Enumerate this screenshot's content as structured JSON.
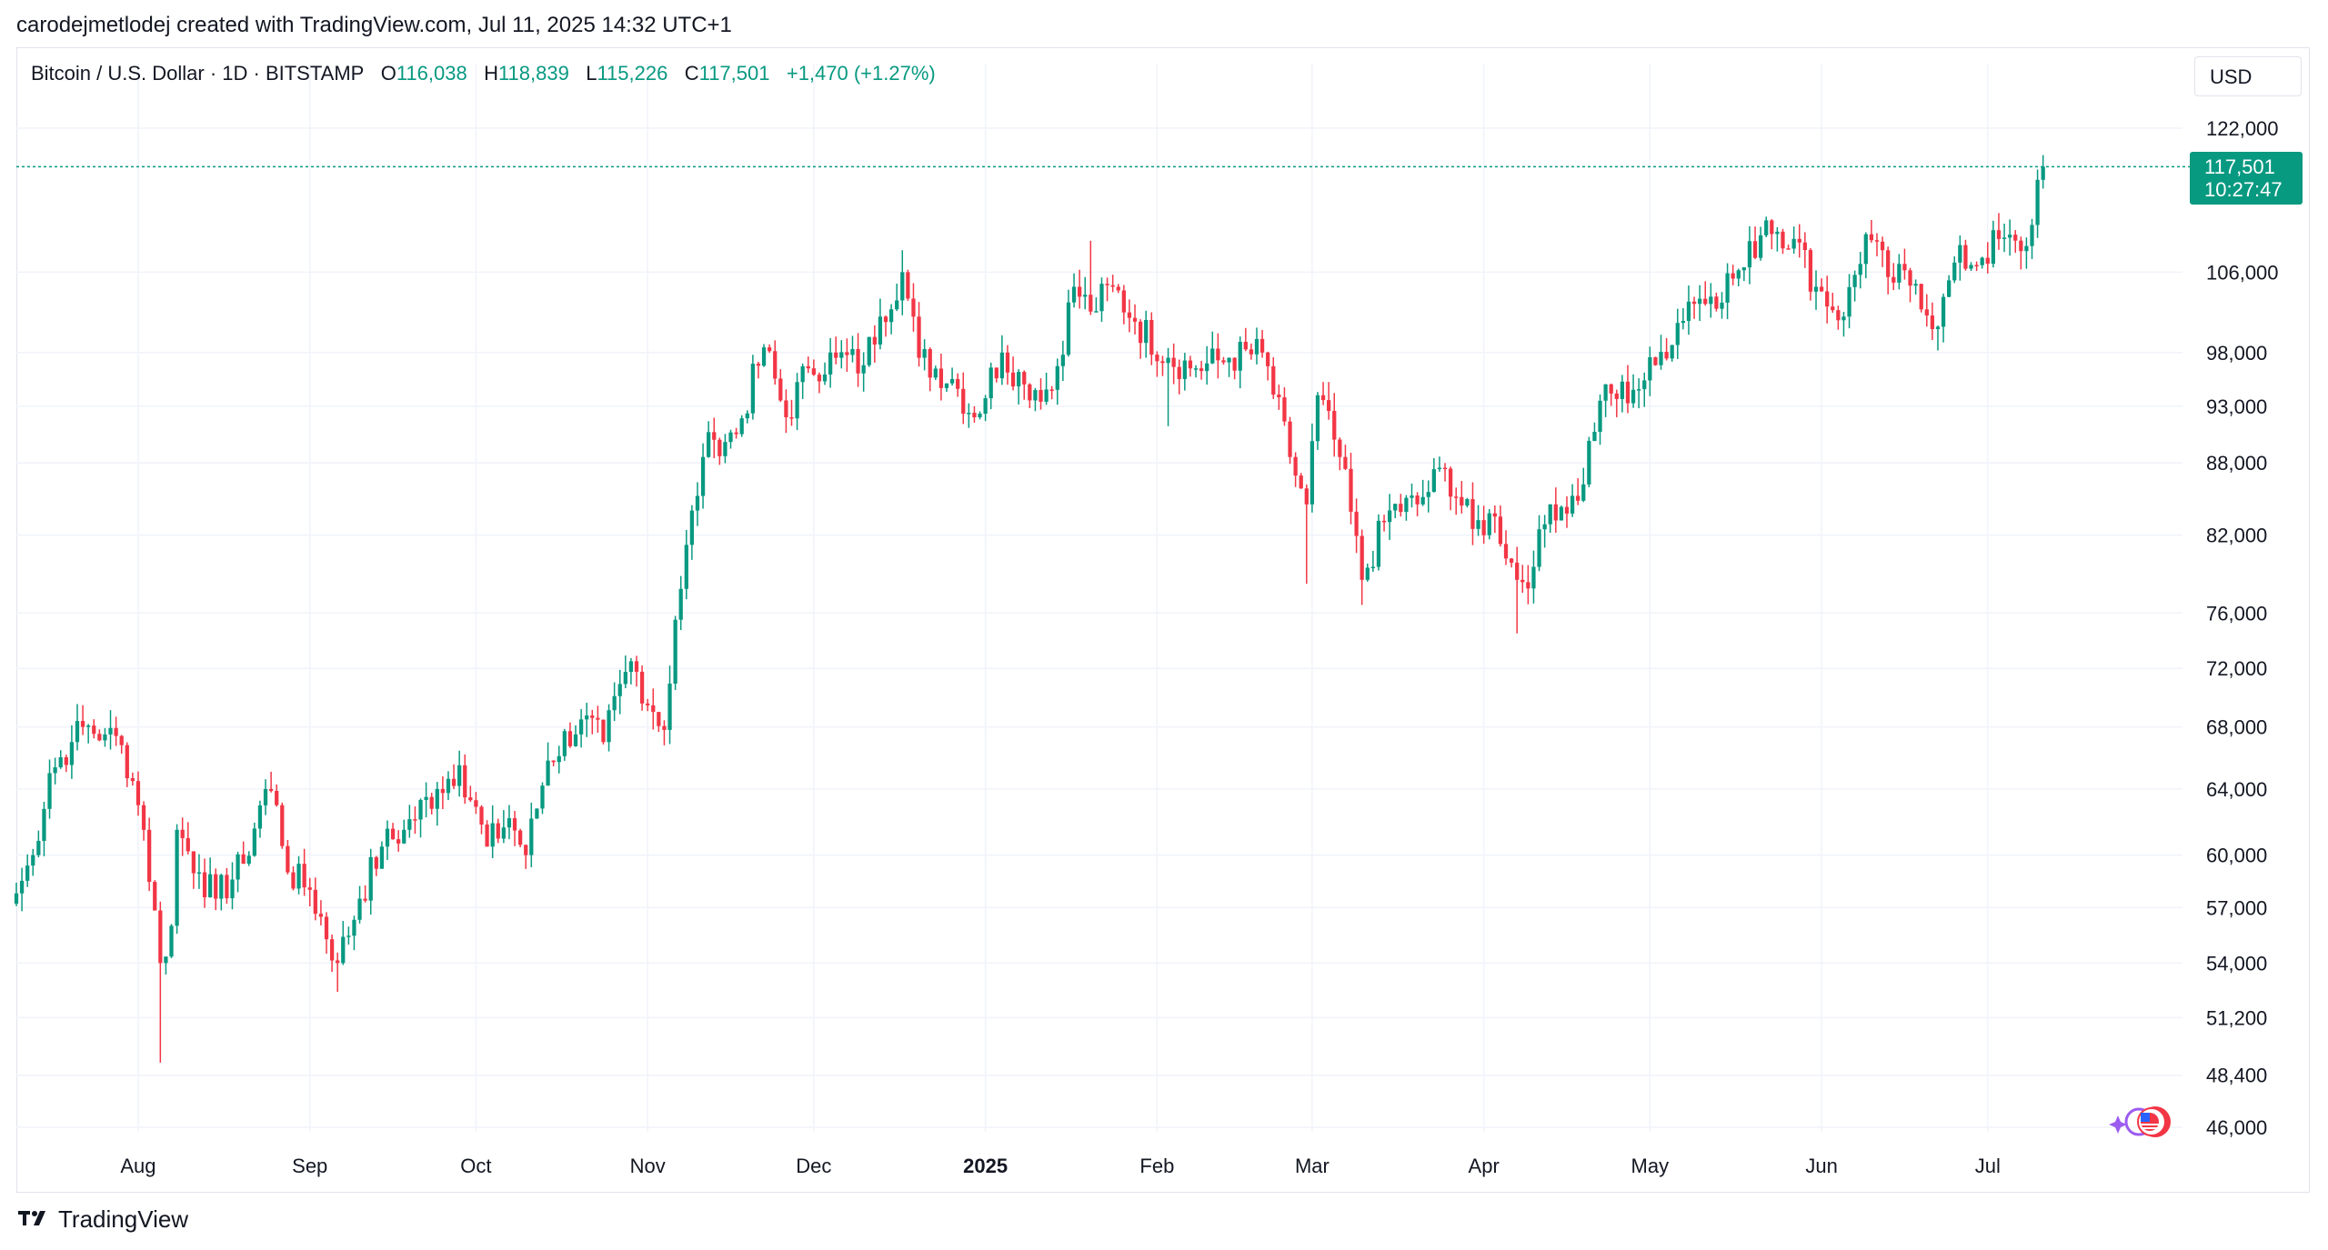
{
  "header": {
    "caption": "carodejmetlodej created with TradingView.com, Jul 11, 2025 14:32 UTC+1"
  },
  "symbol": {
    "title": "Bitcoin / U.S. Dollar · 1D · BITSTAMP",
    "open_label": "O",
    "open_value": "116,038",
    "high_label": "H",
    "high_value": "118,839",
    "low_label": "L",
    "low_value": "115,226",
    "close_label": "C",
    "close_value": "117,501",
    "change": "+1,470 (+1.27%)"
  },
  "currency": "USD",
  "last_price": {
    "price": "117,501",
    "countdown": "10:27:47"
  },
  "brand": {
    "name": "TradingView"
  },
  "icons": {
    "logo": "tradingview-logo-icon",
    "flag": "us-flag-events-icon"
  },
  "colors": {
    "up": "#089981",
    "down": "#f23645",
    "grid": "#f0f3fa",
    "axis_text": "#131722"
  },
  "chart_data": {
    "type": "candlestick",
    "scale": "log",
    "ylim": [
      45000,
      130000
    ],
    "y_ticks": [
      {
        "value": 122000,
        "label": "122,000"
      },
      {
        "value": 106000,
        "label": "106,000"
      },
      {
        "value": 98000,
        "label": "98,000"
      },
      {
        "value": 93000,
        "label": "93,000"
      },
      {
        "value": 88000,
        "label": "88,000"
      },
      {
        "value": 82000,
        "label": "82,000"
      },
      {
        "value": 76000,
        "label": "76,000"
      },
      {
        "value": 72000,
        "label": "72,000"
      },
      {
        "value": 68000,
        "label": "68,000"
      },
      {
        "value": 64000,
        "label": "64,000"
      },
      {
        "value": 60000,
        "label": "60,000"
      },
      {
        "value": 57000,
        "label": "57,000"
      },
      {
        "value": 54000,
        "label": "54,000"
      },
      {
        "value": 51200,
        "label": "51,200"
      },
      {
        "value": 48400,
        "label": "48,400"
      },
      {
        "value": 46000,
        "label": "46,000"
      }
    ],
    "x_ticks": [
      {
        "date": "2024-08-01",
        "label": "Aug",
        "bold": false
      },
      {
        "date": "2024-09-01",
        "label": "Sep",
        "bold": false
      },
      {
        "date": "2024-10-01",
        "label": "Oct",
        "bold": false
      },
      {
        "date": "2024-11-01",
        "label": "Nov",
        "bold": false
      },
      {
        "date": "2024-12-01",
        "label": "Dec",
        "bold": false
      },
      {
        "date": "2025-01-01",
        "label": "2025",
        "bold": true
      },
      {
        "date": "2025-02-01",
        "label": "Feb",
        "bold": false
      },
      {
        "date": "2025-03-01",
        "label": "Mar",
        "bold": false
      },
      {
        "date": "2025-04-01",
        "label": "Apr",
        "bold": false
      },
      {
        "date": "2025-05-01",
        "label": "May",
        "bold": false
      },
      {
        "date": "2025-06-01",
        "label": "Jun",
        "bold": false
      },
      {
        "date": "2025-07-01",
        "label": "Jul",
        "bold": false
      }
    ],
    "x_range": [
      "2024-07-10",
      "2025-08-06"
    ],
    "last_price_value": 117501,
    "grid": true,
    "close_path": [
      [
        "2024-07-10",
        57800
      ],
      [
        "2024-07-13",
        60000
      ],
      [
        "2024-07-16",
        65000
      ],
      [
        "2024-07-20",
        67000
      ],
      [
        "2024-07-22",
        68000
      ],
      [
        "2024-07-26",
        67500
      ],
      [
        "2024-07-29",
        66800
      ],
      [
        "2024-07-31",
        64500
      ],
      [
        "2024-08-02",
        61500
      ],
      [
        "2024-08-05",
        54000
      ],
      [
        "2024-08-07",
        56000
      ],
      [
        "2024-08-08",
        61500
      ],
      [
        "2024-08-12",
        59000
      ],
      [
        "2024-08-15",
        57500
      ],
      [
        "2024-08-20",
        59500
      ],
      [
        "2024-08-24",
        64000
      ],
      [
        "2024-08-26",
        63000
      ],
      [
        "2024-08-28",
        59000
      ],
      [
        "2024-09-01",
        58000
      ],
      [
        "2024-09-06",
        54000
      ],
      [
        "2024-09-10",
        57500
      ],
      [
        "2024-09-14",
        60500
      ],
      [
        "2024-09-18",
        61500
      ],
      [
        "2024-09-24",
        64000
      ],
      [
        "2024-09-28",
        65500
      ],
      [
        "2024-10-03",
        60500
      ],
      [
        "2024-10-07",
        62200
      ],
      [
        "2024-10-10",
        60000
      ],
      [
        "2024-10-14",
        65800
      ],
      [
        "2024-10-20",
        68500
      ],
      [
        "2024-10-24",
        67000
      ],
      [
        "2024-10-29",
        72500
      ],
      [
        "2024-11-02",
        69000
      ],
      [
        "2024-11-04",
        67800
      ],
      [
        "2024-11-06",
        75500
      ],
      [
        "2024-11-11",
        88500
      ],
      [
        "2024-11-13",
        90000
      ],
      [
        "2024-11-17",
        90500
      ],
      [
        "2024-11-22",
        98500
      ],
      [
        "2024-11-26",
        92000
      ],
      [
        "2024-11-30",
        96500
      ],
      [
        "2024-12-05",
        97500
      ],
      [
        "2024-12-10",
        96800
      ],
      [
        "2024-12-13",
        101500
      ],
      [
        "2024-12-17",
        106000
      ],
      [
        "2024-12-20",
        97500
      ],
      [
        "2024-12-26",
        95500
      ],
      [
        "2024-12-30",
        92000
      ],
      [
        "2025-01-04",
        98000
      ],
      [
        "2025-01-08",
        95000
      ],
      [
        "2025-01-13",
        94500
      ],
      [
        "2025-01-17",
        104500
      ],
      [
        "2025-01-20",
        102000
      ],
      [
        "2025-01-24",
        104500
      ],
      [
        "2025-01-28",
        101000
      ],
      [
        "2025-02-03",
        97500
      ],
      [
        "2025-02-08",
        96500
      ],
      [
        "2025-02-14",
        97500
      ],
      [
        "2025-02-20",
        98000
      ],
      [
        "2025-02-25",
        88500
      ],
      [
        "2025-02-28",
        84500
      ],
      [
        "2025-03-02",
        94000
      ],
      [
        "2025-03-06",
        88500
      ],
      [
        "2025-03-10",
        78500
      ],
      [
        "2025-03-15",
        84000
      ],
      [
        "2025-03-20",
        84500
      ],
      [
        "2025-03-25",
        87500
      ],
      [
        "2025-03-30",
        82500
      ],
      [
        "2025-04-03",
        83500
      ],
      [
        "2025-04-07",
        78500
      ],
      [
        "2025-04-10",
        79500
      ],
      [
        "2025-04-13",
        84500
      ],
      [
        "2025-04-18",
        84800
      ],
      [
        "2025-04-22",
        93500
      ],
      [
        "2025-04-28",
        94500
      ],
      [
        "2025-05-02",
        96800
      ],
      [
        "2025-05-08",
        103000
      ],
      [
        "2025-05-12",
        103500
      ],
      [
        "2025-05-18",
        106500
      ],
      [
        "2025-05-22",
        111500
      ],
      [
        "2025-05-27",
        109500
      ],
      [
        "2025-05-31",
        104500
      ],
      [
        "2025-06-05",
        101500
      ],
      [
        "2025-06-09",
        110000
      ],
      [
        "2025-06-13",
        105500
      ],
      [
        "2025-06-18",
        104800
      ],
      [
        "2025-06-22",
        100500
      ],
      [
        "2025-06-25",
        107000
      ],
      [
        "2025-06-30",
        107500
      ],
      [
        "2025-07-03",
        109500
      ],
      [
        "2025-07-07",
        108200
      ],
      [
        "2025-07-09",
        111000
      ],
      [
        "2025-07-10",
        116000
      ],
      [
        "2025-07-11",
        117501
      ]
    ],
    "wick_extremes": [
      {
        "date": "2024-08-05",
        "low": 49000
      },
      {
        "date": "2024-09-06",
        "low": 52500
      },
      {
        "date": "2024-12-17",
        "high": 108300
      },
      {
        "date": "2025-01-20",
        "high": 109300
      },
      {
        "date": "2025-02-03",
        "low": 91200
      },
      {
        "date": "2025-02-28",
        "low": 78200
      },
      {
        "date": "2025-03-10",
        "low": 76600
      },
      {
        "date": "2025-04-07",
        "low": 74500
      },
      {
        "date": "2025-05-22",
        "high": 111900
      },
      {
        "date": "2025-06-22",
        "low": 98200
      },
      {
        "date": "2025-07-11",
        "high": 118839
      }
    ]
  }
}
